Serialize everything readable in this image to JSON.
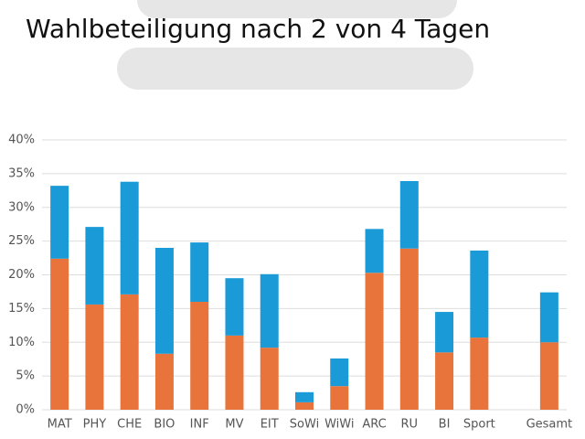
{
  "chart_data": {
    "type": "stacked-bar",
    "title": "Wahlbeteiligung nach 2 von 4 Tagen",
    "categories": [
      "MAT",
      "PHY",
      "CHE",
      "BIO",
      "INF",
      "MV",
      "EIT",
      "SoWi",
      "WiWi",
      "ARC",
      "RU",
      "BI",
      "Sport",
      null,
      "Gesamt"
    ],
    "series": [
      {
        "color": "#e8743b",
        "values": [
          22.4,
          15.6,
          17.1,
          8.3,
          16.0,
          11.0,
          9.2,
          1.1,
          3.5,
          20.3,
          23.9,
          8.5,
          10.7,
          null,
          10.0
        ]
      },
      {
        "color": "#1a9ad6",
        "values": [
          10.8,
          11.5,
          16.7,
          15.7,
          8.8,
          8.5,
          10.9,
          1.5,
          4.1,
          6.5,
          10.0,
          6.0,
          12.9,
          null,
          7.4
        ]
      }
    ],
    "ylim": [
      0,
      40
    ],
    "yticks": [
      {
        "value": 0,
        "label": "0%"
      },
      {
        "value": 5,
        "label": "5%"
      },
      {
        "value": 10,
        "label": "10%"
      },
      {
        "value": 15,
        "label": "15%"
      },
      {
        "value": 20,
        "label": "20%"
      },
      {
        "value": 25,
        "label": "25%"
      },
      {
        "value": 30,
        "label": "30%"
      },
      {
        "value": 35,
        "label": "35%"
      },
      {
        "value": 40,
        "label": "40%"
      }
    ],
    "grid": true
  }
}
